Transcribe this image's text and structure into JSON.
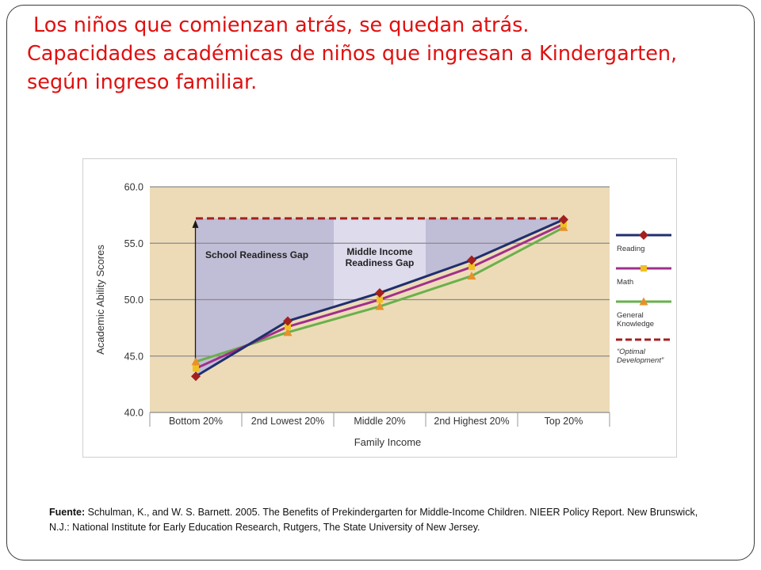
{
  "slide": {
    "title_line1": "Los niños que comienzan atrás, se quedan atrás.",
    "title_line2": "Capacidades académicas de niños que ingresan a Kindergarten,",
    "title_line3": "según ingreso familiar.",
    "source_label": "Fuente:",
    "source_text": " Schulman, K., and W. S. Barnett. 2005. The Benefits of Prekindergarten for Middle-Income Children. NIEER Policy Report. New Brunswick, N.J.: National Institute  for Early Education Research, Rutgers, The State University of New Jersey."
  },
  "chart_data": {
    "type": "line",
    "xlabel": "Family Income",
    "ylabel": "Academic Ability Scores",
    "categories": [
      "Bottom 20%",
      "2nd Lowest 20%",
      "Middle 20%",
      "2nd Highest 20%",
      "Top 20%"
    ],
    "ylim": [
      40.0,
      60.0
    ],
    "yticks": [
      "60.0",
      "55.0",
      "50.0",
      "45.0",
      "40.0"
    ],
    "grid": true,
    "legend_position": "right",
    "series": [
      {
        "name": "Reading",
        "values": [
          43.2,
          48.1,
          50.6,
          53.5,
          57.1
        ],
        "color": "#1f2f6e",
        "marker": "diamond",
        "marker_color": "#a32020"
      },
      {
        "name": "Math",
        "values": [
          43.9,
          47.6,
          50.0,
          52.9,
          56.7
        ],
        "color": "#a0308a",
        "marker": "square",
        "marker_color": "#f0c020"
      },
      {
        "name": "General Knowledge",
        "values": [
          44.5,
          47.1,
          49.4,
          52.1,
          56.4
        ],
        "color": "#6ab04c",
        "marker": "triangle",
        "marker_color": "#e8902a"
      }
    ],
    "optimal": {
      "name": "“Optimal Development”",
      "value": 57.2,
      "color": "#a32020"
    },
    "annotations": {
      "gap1": "School Readiness Gap",
      "gap2_line1": "Middle Income",
      "gap2_line2": "Readiness Gap"
    },
    "legend_lines": {
      "reading": [
        "Reading"
      ],
      "math": [
        "Math"
      ],
      "general": [
        "General",
        "Knowledge"
      ],
      "optimal": [
        "“Optimal",
        "Development”"
      ]
    },
    "colors": {
      "plot_background": "#eddbb8",
      "gap_school": "#c0bdd6",
      "gap_middle": "#dddbec",
      "grid": "#8a8a8a"
    }
  }
}
